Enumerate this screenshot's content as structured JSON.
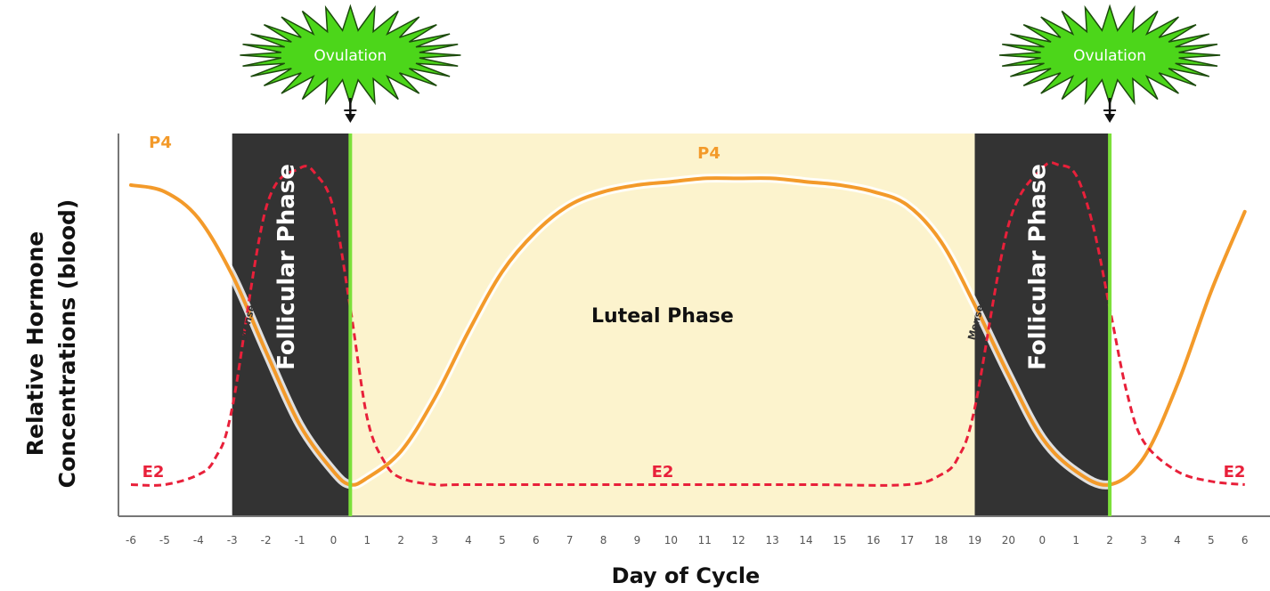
{
  "chart_data": {
    "type": "line",
    "xlabel": "Day of Cycle",
    "ylabel_lines": [
      "Relative Hormone",
      "Concentrations (blood)"
    ],
    "tick_labels": [
      "-6",
      "-5",
      "-4",
      "-3",
      "-2",
      "-1",
      "0",
      "1",
      "2",
      "3",
      "4",
      "5",
      "6",
      "7",
      "8",
      "9",
      "10",
      "11",
      "12",
      "13",
      "14",
      "15",
      "16",
      "17",
      "18",
      "19",
      "20",
      "0",
      "1",
      "2",
      "3",
      "4",
      "5",
      "6"
    ],
    "phases": [
      {
        "label": "Follicular Phase",
        "start_index": 3,
        "end_index": 6.5,
        "fill": "#333333"
      },
      {
        "label": "Luteal Phase",
        "start_index": 6.5,
        "end_index": 25,
        "fill": "#fcf3cd"
      },
      {
        "label": "Follicular Phase",
        "start_index": 25,
        "end_index": 29,
        "fill": "#333333"
      }
    ],
    "menses_labels": [
      "Menses",
      "Menses"
    ],
    "ovulation": {
      "label": "Ovulation",
      "indices": [
        6.5,
        29
      ],
      "burst_color": "#4cd61a",
      "line_color": "#7ce03a"
    },
    "series": [
      {
        "name": "P4",
        "color": "#f39a2a",
        "style": "solid",
        "labels": [
          "P4",
          "P4"
        ]
      },
      {
        "name": "E2",
        "color": "#e8203a",
        "style": "dashed",
        "labels": [
          "E2",
          "E2",
          "E2"
        ]
      }
    ],
    "curves": {
      "P4": {
        "x_index": [
          0,
          1,
          2,
          3,
          4,
          5,
          6,
          6.5,
          7,
          8,
          9,
          10,
          11,
          12,
          13,
          14,
          15,
          16,
          17,
          18,
          19,
          20,
          21,
          22,
          23,
          24,
          25,
          26,
          27,
          28,
          29,
          30,
          31,
          32,
          33
        ],
        "values": [
          0.92,
          0.9,
          0.82,
          0.65,
          0.42,
          0.2,
          0.06,
          0.02,
          0.04,
          0.12,
          0.28,
          0.48,
          0.66,
          0.78,
          0.86,
          0.9,
          0.92,
          0.93,
          0.94,
          0.94,
          0.94,
          0.93,
          0.92,
          0.9,
          0.86,
          0.75,
          0.56,
          0.35,
          0.16,
          0.06,
          0.02,
          0.1,
          0.32,
          0.6,
          0.84
        ]
      },
      "E2": {
        "x_index": [
          0,
          1,
          2,
          2.5,
          3,
          4,
          5,
          5.5,
          6,
          6.5,
          7,
          7.5,
          8,
          9,
          10,
          15,
          20,
          23,
          24,
          24.5,
          25,
          26,
          27,
          27.5,
          28,
          28.5,
          29,
          29.5,
          30,
          31,
          32,
          33
        ],
        "values": [
          0.02,
          0.02,
          0.05,
          0.1,
          0.25,
          0.85,
          0.97,
          0.95,
          0.85,
          0.55,
          0.22,
          0.09,
          0.04,
          0.02,
          0.02,
          0.02,
          0.02,
          0.02,
          0.05,
          0.1,
          0.25,
          0.8,
          0.97,
          0.98,
          0.95,
          0.8,
          0.55,
          0.3,
          0.15,
          0.06,
          0.03,
          0.02
        ]
      }
    },
    "ylim": [
      0,
      1
    ]
  }
}
